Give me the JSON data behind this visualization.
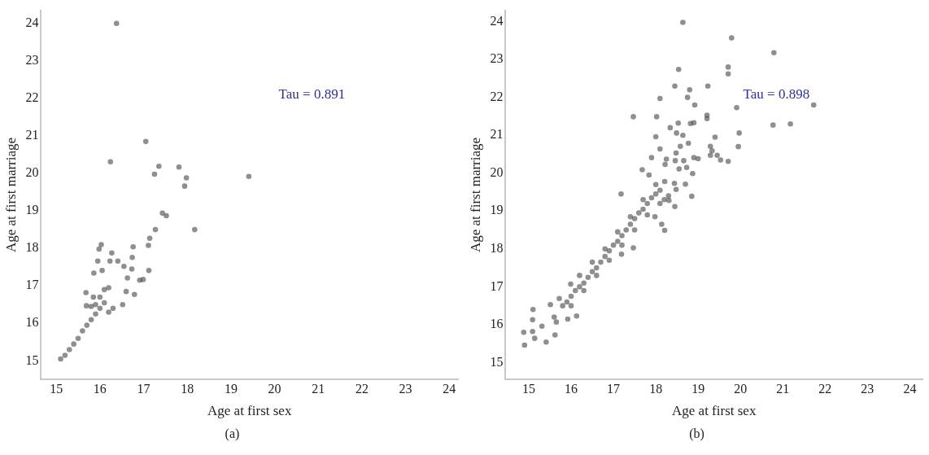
{
  "chart_data": [
    {
      "type": "scatter",
      "xlabel": "Age at first sex",
      "ylabel": "Age at first marriage",
      "annotations": [
        "Tau = 0.891",
        "(a)"
      ],
      "marker": "circle",
      "color": "#444444",
      "x": [
        16.38,
        17.05,
        16.24,
        17.35,
        17.25,
        17.81,
        17.98,
        17.94,
        19.41,
        17.43,
        17.52,
        18.17,
        17.27,
        17.14,
        17.11,
        16.76,
        16.03,
        15.98,
        16.74,
        16.27,
        16.41,
        15.95,
        16.23,
        16.55,
        16.73,
        17.12,
        16.05,
        15.86,
        16.63,
        16.99,
        16.91,
        16.79,
        16.6,
        15.68,
        16.52,
        15.69,
        15.1,
        15.2,
        15.3,
        15.4,
        15.5,
        15.6,
        15.7,
        15.8,
        15.9,
        16.0,
        16.1,
        16.0,
        15.9,
        16.2,
        16.3,
        16.1,
        15.8,
        16.2,
        15.85
      ],
      "values": [
        24.0,
        20.85,
        20.31,
        20.19,
        19.98,
        20.17,
        19.88,
        19.66,
        19.92,
        18.94,
        18.87,
        18.5,
        18.5,
        18.27,
        18.08,
        18.04,
        18.1,
        17.98,
        17.76,
        17.88,
        17.66,
        17.66,
        17.66,
        17.52,
        17.45,
        17.41,
        17.41,
        17.34,
        17.21,
        17.17,
        17.15,
        16.77,
        16.85,
        16.82,
        16.5,
        16.47,
        15.05,
        15.15,
        15.3,
        15.45,
        15.6,
        15.8,
        15.95,
        16.1,
        16.25,
        16.4,
        16.55,
        16.7,
        16.5,
        16.3,
        16.4,
        16.9,
        16.45,
        16.95,
        16.7
      ],
      "xlim": [
        14.65,
        24.2
      ],
      "ylim": [
        14.5,
        24.35
      ],
      "xticks": [
        15,
        16,
        17,
        18,
        19,
        20,
        21,
        22,
        23,
        24
      ],
      "yticks": [
        15,
        16,
        17,
        18,
        19,
        20,
        21,
        22,
        23,
        24
      ],
      "grid": false
    },
    {
      "type": "scatter",
      "xlabel": "Age at first sex",
      "ylabel": "Age at first marriage",
      "annotations": [
        "Tau = 0.898",
        "(b)"
      ],
      "marker": "circle",
      "color": "#444444",
      "x": [
        18.64,
        19.79,
        20.79,
        18.54,
        19.71,
        19.71,
        18.45,
        19.23,
        18.8,
        18.1,
        18.75,
        18.92,
        19.91,
        21.73,
        17.47,
        18.02,
        19.21,
        19.21,
        18.53,
        18.82,
        18.9,
        20.77,
        21.18,
        18.34,
        18.49,
        18.64,
        18.0,
        19.4,
        19.97,
        18.77,
        18.58,
        18.1,
        19.29,
        19.95,
        19.33,
        18.48,
        17.9,
        19.29,
        19.45,
        19.53,
        19.71,
        18.9,
        19.0,
        18.25,
        18.22,
        18.46,
        18.66,
        18.55,
        18.73,
        18.87,
        17.68,
        17.84,
        18.21,
        18.44,
        18.7,
        18.48,
        18.85,
        18.45,
        18.31,
        17.18,
        18.14,
        18.21,
        17.98,
        17.47,
        17.19,
        14.88,
        14.9,
        15.1,
        15.09,
        15.09,
        15.14,
        15.31,
        15.41,
        15.62,
        15.51,
        15.72,
        15.99,
        15.92,
        16.13,
        15.65,
        15.6,
        15.8,
        15.9,
        16.0,
        16.1,
        16.2,
        16.3,
        16.4,
        16.5,
        16.6,
        16.7,
        16.8,
        16.9,
        17.0,
        17.1,
        17.2,
        17.3,
        17.4,
        17.5,
        17.6,
        17.7,
        17.8,
        17.9,
        18.0,
        18.1,
        18.2,
        16.0,
        16.3,
        16.6,
        16.9,
        17.2,
        17.5,
        17.8,
        18.1,
        16.2,
        16.5,
        16.8,
        17.1,
        17.4,
        17.7,
        18.0,
        18.3
      ],
      "values": [
        23.98,
        23.57,
        23.18,
        22.74,
        22.8,
        22.62,
        22.3,
        22.3,
        22.2,
        21.97,
        22.0,
        21.8,
        21.73,
        21.8,
        21.49,
        21.49,
        21.53,
        21.44,
        21.32,
        21.31,
        21.33,
        21.27,
        21.3,
        21.2,
        21.06,
        21.0,
        20.96,
        20.95,
        21.06,
        20.79,
        20.71,
        20.64,
        20.71,
        20.7,
        20.59,
        20.53,
        20.41,
        20.47,
        20.47,
        20.35,
        20.31,
        20.41,
        20.38,
        20.37,
        20.23,
        20.33,
        20.33,
        20.11,
        20.15,
        19.99,
        20.09,
        19.95,
        19.78,
        19.73,
        19.71,
        19.57,
        19.39,
        19.12,
        19.28,
        19.45,
        18.65,
        18.49,
        18.85,
        18.03,
        17.86,
        15.8,
        15.46,
        16.4,
        16.13,
        15.82,
        15.64,
        15.96,
        15.54,
        15.73,
        16.53,
        16.69,
        17.07,
        16.15,
        16.23,
        16.07,
        16.2,
        16.5,
        16.6,
        16.75,
        16.9,
        17.0,
        17.1,
        17.25,
        17.4,
        17.5,
        17.65,
        17.8,
        17.95,
        18.1,
        18.2,
        18.35,
        18.5,
        18.65,
        18.8,
        18.95,
        19.05,
        19.2,
        19.35,
        19.45,
        19.55,
        19.3,
        16.5,
        16.9,
        17.3,
        17.7,
        18.1,
        18.5,
        18.9,
        19.2,
        17.3,
        17.65,
        18.0,
        18.45,
        18.85,
        19.3,
        19.7,
        19.4
      ],
      "xlim": [
        14.45,
        24.3
      ],
      "ylim": [
        14.55,
        24.3
      ],
      "xticks": [
        15,
        16,
        17,
        18,
        19,
        20,
        21,
        22,
        23,
        24
      ],
      "yticks": [
        15,
        16,
        17,
        18,
        19,
        20,
        21,
        22,
        23,
        24
      ],
      "grid": false
    }
  ]
}
